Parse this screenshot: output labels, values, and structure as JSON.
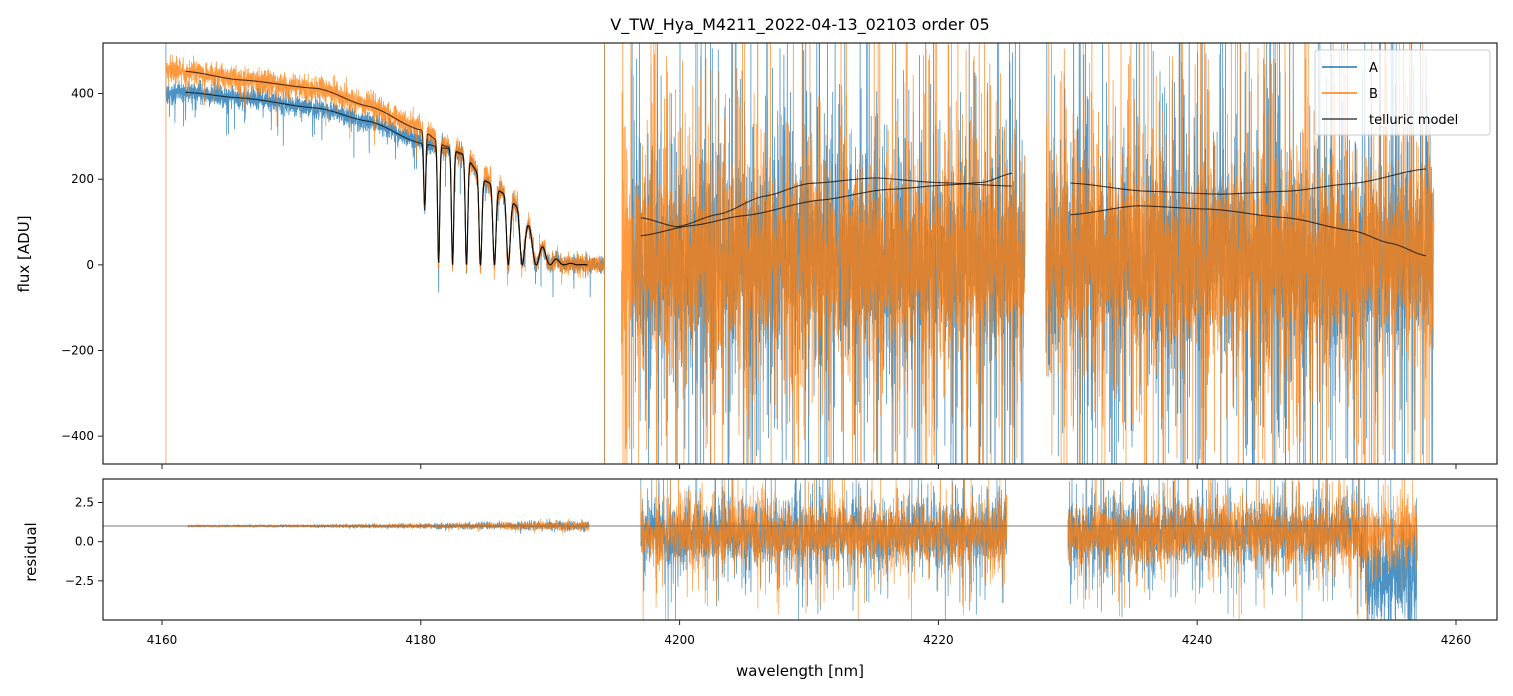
{
  "chart_data": {
    "type": "line",
    "title": "V_TW_Hya_M4211_2022-04-13_02103  order 05",
    "xlabel": "wavelength [nm]",
    "xlim": [
      4155.44,
      4263.17
    ],
    "xticks": [
      4160,
      4180,
      4200,
      4220,
      4240,
      4260
    ],
    "xtick_labels": [
      "4160",
      "4180",
      "4200",
      "4220",
      "4240",
      "4260"
    ],
    "legend": {
      "placement": "top-right",
      "entries": [
        {
          "label": "A",
          "color": "#1f77b4"
        },
        {
          "label": "B",
          "color": "#ff7f0e"
        },
        {
          "label": "telluric model",
          "color": "#3a3a3a"
        }
      ]
    },
    "panels": [
      {
        "name": "flux",
        "ylabel": "flux [ADU]",
        "ylim": [
          -465,
          518
        ],
        "yticks": [
          400,
          200,
          0,
          -200,
          -400
        ],
        "ytick_labels": [
          "400",
          "200",
          "0",
          "−200",
          "−400"
        ],
        "series": [
          {
            "name": "A",
            "color": "#1f77b4",
            "segments": [
              {
                "range": [
                  4160.3,
                  4194.2
                ],
                "kind": "fringed-continuum",
                "noise_sigma": 12,
                "continuum": [
                  [
                    4160.3,
                    400
                  ],
                  [
                    4161.8,
                    403
                  ],
                  [
                    4166,
                    392
                  ],
                  [
                    4172,
                    366
                  ],
                  [
                    4176,
                    335
                  ],
                  [
                    4180,
                    288
                  ],
                  [
                    4182,
                    272
                  ],
                  [
                    4183.2,
                    258
                  ],
                  [
                    4185,
                    195
                  ],
                  [
                    4186.5,
                    165
                  ],
                  [
                    4187.7,
                    128
                  ],
                  [
                    4188.9,
                    60
                  ],
                  [
                    4190,
                    22
                  ],
                  [
                    4191,
                    5
                  ],
                  [
                    4194.2,
                    0
                  ]
                ]
              },
              {
                "range": [
                  4196.3,
                  4226.7
                ],
                "kind": "noise",
                "center": 0,
                "noise_sigma": 95
              },
              {
                "range": [
                  4228.3,
                  4258.2
                ],
                "kind": "noise",
                "center": 0,
                "noise_sigma": 95
              }
            ]
          },
          {
            "name": "B",
            "color": "#ff7f0e",
            "segments": [
              {
                "range": [
                  4160.3,
                  4194.2
                ],
                "kind": "fringed-continuum",
                "noise_sigma": 14,
                "continuum": [
                  [
                    4160.3,
                    460
                  ],
                  [
                    4161.8,
                    452
                  ],
                  [
                    4166,
                    434
                  ],
                  [
                    4172,
                    412
                  ],
                  [
                    4176,
                    372
                  ],
                  [
                    4180,
                    318
                  ],
                  [
                    4182,
                    278
                  ],
                  [
                    4183.2,
                    262
                  ],
                  [
                    4185,
                    197
                  ],
                  [
                    4186.5,
                    168
                  ],
                  [
                    4187.7,
                    130
                  ],
                  [
                    4188.9,
                    62
                  ],
                  [
                    4190,
                    22
                  ],
                  [
                    4191,
                    5
                  ],
                  [
                    4194.2,
                    0
                  ]
                ]
              },
              {
                "range": [
                  4195.5,
                  4226.7
                ],
                "kind": "noise",
                "center": 0,
                "noise_sigma": 100
              },
              {
                "range": [
                  4228.3,
                  4258.3
                ],
                "kind": "noise",
                "center": 0,
                "noise_sigma": 100
              }
            ]
          }
        ],
        "telluric_model": [
          {
            "range": [
              4161.8,
              4192.9
            ],
            "fringed": true,
            "continuum": [
              [
                4161.8,
                403
              ],
              [
                4166,
                390
              ],
              [
                4172,
                366
              ],
              [
                4176,
                335
              ],
              [
                4180,
                284
              ],
              [
                4182,
                272
              ],
              [
                4183.2,
                258
              ],
              [
                4185,
                195
              ],
              [
                4186.5,
                165
              ],
              [
                4187.7,
                128
              ],
              [
                4188.9,
                60
              ],
              [
                4190,
                22
              ],
              [
                4191,
                5
              ],
              [
                4192.9,
                0
              ]
            ]
          },
          {
            "range": [
              4161.8,
              4192.9
            ],
            "fringed": true,
            "continuum": [
              [
                4161.8,
                452
              ],
              [
                4166,
                432
              ],
              [
                4172,
                412
              ],
              [
                4176,
                370
              ],
              [
                4180,
                315
              ],
              [
                4182,
                276
              ],
              [
                4183.2,
                260
              ],
              [
                4185,
                196
              ],
              [
                4186.5,
                166
              ],
              [
                4187.7,
                129
              ],
              [
                4188.9,
                61
              ],
              [
                4190,
                22
              ],
              [
                4191,
                5
              ],
              [
                4192.9,
                0
              ]
            ]
          },
          {
            "range": [
              4197.0,
              4225.7
            ],
            "points": [
              [
                4197.0,
                110
              ],
              [
                4199.8,
                89
              ],
              [
                4203,
                118
              ],
              [
                4206.5,
                160
              ],
              [
                4210,
                190
              ],
              [
                4215.1,
                203
              ],
              [
                4220,
                192
              ],
              [
                4225.7,
                184
              ]
            ]
          },
          {
            "range": [
              4197.0,
              4225.7
            ],
            "points": [
              [
                4197.0,
                68
              ],
              [
                4201,
                92
              ],
              [
                4205,
                115
              ],
              [
                4210.8,
                151
              ],
              [
                4216,
                176
              ],
              [
                4221,
                187
              ],
              [
                4223.5,
                193
              ],
              [
                4225.7,
                214
              ]
            ]
          },
          {
            "range": [
              4230.2,
              4257.7
            ],
            "points": [
              [
                4230.2,
                191
              ],
              [
                4236,
                172
              ],
              [
                4241.8,
                165
              ],
              [
                4247,
                172
              ],
              [
                4252,
                190
              ],
              [
                4257.7,
                224
              ]
            ]
          },
          {
            "range": [
              4230.2,
              4257.7
            ],
            "points": [
              [
                4230.2,
                117
              ],
              [
                4235.4,
                138
              ],
              [
                4241,
                130
              ],
              [
                4246.9,
                110
              ],
              [
                4252,
                80
              ],
              [
                4255,
                50
              ],
              [
                4257.7,
                21
              ]
            ]
          }
        ],
        "fringe": {
          "first_minimum_nm": 4180.3,
          "period_nm": 1.078
        }
      },
      {
        "name": "residual",
        "ylabel": "residual",
        "ylim": [
          -5.0,
          4.0
        ],
        "yticks": [
          2.5,
          0.0,
          -2.5
        ],
        "ytick_labels": [
          "2.5",
          "0.0",
          "−2.5"
        ],
        "reference_line": 1.0,
        "segments": [
          {
            "range": [
              4162.0,
              4193.0
            ],
            "center": 1.0,
            "noise_sigma_start": 0.03,
            "noise_sigma_end": 0.18
          },
          {
            "range": [
              4197.0,
              4225.3
            ],
            "center": 0.5,
            "noise_sigma": 0.9
          },
          {
            "range": [
              4230.0,
              4257.0
            ],
            "center": 0.5,
            "noise_sigma": 0.9
          }
        ]
      }
    ]
  }
}
